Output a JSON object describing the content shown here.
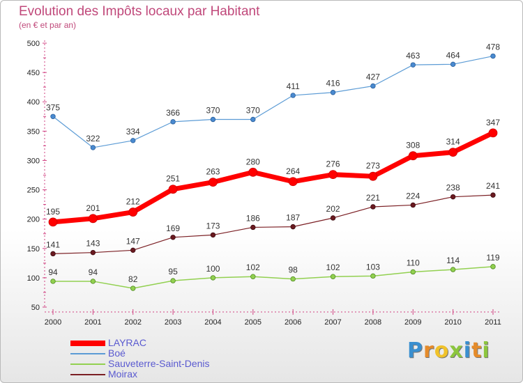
{
  "header": {
    "title": "Evolution des Impôts locaux par Habitant",
    "subtitle": "(en € et par an)"
  },
  "logo": {
    "letters": [
      {
        "ch": "P",
        "color": "#3a8fd0"
      },
      {
        "ch": "r",
        "color": "#e58b2a"
      },
      {
        "ch": "o",
        "color": "#f0c22a"
      },
      {
        "ch": "x",
        "color": "#8cc63e"
      },
      {
        "ch": "i",
        "color": "#3a8fd0"
      },
      {
        "ch": "t",
        "color": "#e58b2a"
      },
      {
        "ch": "i",
        "color": "#8cc63e"
      }
    ]
  },
  "chart_data": {
    "type": "line",
    "title": "Evolution des Impôts locaux par Habitant",
    "subtitle": "(en € et par an)",
    "x": [
      "2000",
      "2001",
      "2002",
      "2003",
      "2004",
      "2005",
      "2006",
      "2007",
      "2008",
      "2009",
      "2010",
      "2011"
    ],
    "ylim": [
      50,
      500
    ],
    "yticks": [
      50,
      100,
      150,
      200,
      250,
      300,
      350,
      400,
      450,
      500
    ],
    "grid": false,
    "legend_position": "bottom-left",
    "series": [
      {
        "name": "LAYRAC",
        "color": "#ff0000",
        "values": [
          195,
          201,
          212,
          251,
          263,
          280,
          264,
          276,
          273,
          308,
          314,
          347
        ]
      },
      {
        "name": "Boé",
        "color": "#5b9bd5",
        "values": [
          375,
          322,
          334,
          366,
          370,
          370,
          411,
          416,
          427,
          463,
          464,
          478
        ]
      },
      {
        "name": "Sauveterre-Saint-Denis",
        "color": "#92d050",
        "values": [
          94,
          94,
          82,
          95,
          100,
          102,
          98,
          102,
          103,
          110,
          114,
          119
        ]
      },
      {
        "name": "Moirax",
        "color": "#7b1f24",
        "values": [
          141,
          143,
          147,
          169,
          173,
          186,
          187,
          202,
          221,
          224,
          238,
          241
        ]
      }
    ]
  }
}
